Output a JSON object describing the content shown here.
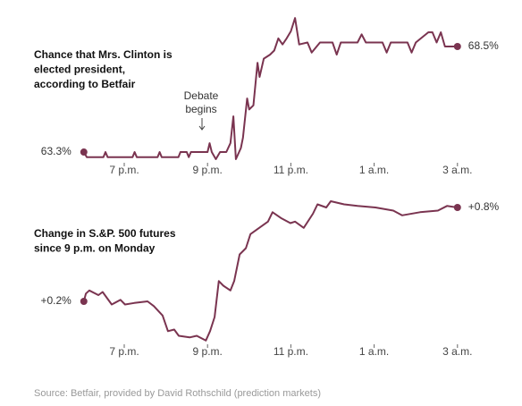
{
  "chart_data": [
    {
      "type": "line",
      "title": [
        "Chance that Mrs. Clinton is",
        "elected president,",
        "according to Betfair"
      ],
      "annotation": [
        "Debate",
        "begins"
      ],
      "color": "#7a3450",
      "xlim": [
        17.5,
        28
      ],
      "ylim": [
        62.5,
        70.5
      ],
      "xticks": [
        {
          "value": 19,
          "label": "7 p.m."
        },
        {
          "value": 21,
          "label": "9 p.m."
        },
        {
          "value": 23,
          "label": "11 p.m."
        },
        {
          "value": 25,
          "label": "1 a.m."
        },
        {
          "value": 27,
          "label": "3 a.m."
        }
      ],
      "x": [
        18.03,
        18.1,
        18.5,
        18.55,
        18.6,
        19.2,
        19.25,
        19.3,
        19.8,
        19.85,
        19.9,
        20.3,
        20.35,
        20.5,
        20.55,
        20.6,
        21.0,
        21.05,
        21.1,
        21.2,
        21.3,
        21.45,
        21.55,
        21.62,
        21.68,
        21.8,
        21.85,
        21.95,
        22.0,
        22.1,
        22.2,
        22.25,
        22.35,
        22.5,
        22.6,
        22.7,
        22.8,
        22.9,
        23.0,
        23.1,
        23.2,
        23.4,
        23.5,
        23.7,
        24.0,
        24.1,
        24.2,
        24.6,
        24.7,
        24.8,
        25.2,
        25.3,
        25.4,
        25.8,
        25.9,
        26.0,
        26.3,
        26.4,
        26.5,
        26.6,
        26.7,
        27.0
      ],
      "values": [
        63.3,
        63.05,
        63.05,
        63.3,
        63.05,
        63.05,
        63.3,
        63.05,
        63.05,
        63.3,
        63.05,
        63.05,
        63.3,
        63.3,
        63.05,
        63.3,
        63.3,
        63.74,
        63.3,
        62.95,
        63.3,
        63.3,
        63.74,
        65.06,
        62.95,
        63.5,
        64.0,
        65.94,
        65.4,
        65.6,
        67.7,
        67.0,
        67.9,
        68.1,
        68.3,
        68.9,
        68.6,
        68.9,
        69.25,
        69.9,
        68.6,
        68.7,
        68.2,
        68.7,
        68.7,
        68.1,
        68.7,
        68.7,
        69.1,
        68.7,
        68.7,
        68.2,
        68.7,
        68.7,
        68.2,
        68.7,
        69.2,
        69.2,
        68.7,
        69.2,
        68.5,
        68.5
      ],
      "value_labels": [
        "63.3%",
        null,
        null,
        null,
        null,
        null,
        null,
        null,
        null,
        null,
        null,
        null,
        null,
        null,
        null,
        null,
        null,
        null,
        null,
        null,
        null,
        null,
        null,
        null,
        null,
        null,
        null,
        null,
        null,
        null,
        null,
        null,
        null,
        null,
        null,
        null,
        null,
        null,
        null,
        null,
        null,
        null,
        null,
        null,
        null,
        null,
        null,
        null,
        null,
        null,
        null,
        null,
        null,
        null,
        null,
        null,
        null,
        null,
        null,
        null,
        null,
        "68.5%"
      ]
    },
    {
      "type": "line",
      "title": [
        "Change in S.&P. 500 futures",
        "since 9 p.m. on Monday"
      ],
      "color": "#7a3450",
      "xlim": [
        17.5,
        28
      ],
      "ylim": [
        -0.1,
        0.9
      ],
      "xticks": [
        {
          "value": 19,
          "label": "7 p.m."
        },
        {
          "value": 21,
          "label": "9 p.m."
        },
        {
          "value": 23,
          "label": "11 p.m."
        },
        {
          "value": 25,
          "label": "1 a.m."
        },
        {
          "value": 27,
          "label": "3 a.m."
        }
      ],
      "x": [
        18.03,
        18.08,
        18.16,
        18.38,
        18.48,
        18.7,
        18.91,
        19.02,
        19.24,
        19.56,
        19.71,
        19.92,
        20.05,
        20.2,
        20.31,
        20.57,
        20.74,
        20.96,
        21.06,
        21.17,
        21.27,
        21.38,
        21.55,
        21.64,
        21.77,
        21.92,
        22.03,
        22.24,
        22.45,
        22.56,
        22.78,
        22.99,
        23.1,
        23.31,
        23.53,
        23.64,
        23.85,
        23.96,
        24.28,
        24.6,
        25.03,
        25.46,
        25.67,
        26.1,
        26.53,
        26.75,
        27
      ],
      "values": [
        0.2,
        0.25,
        0.27,
        0.24,
        0.26,
        0.18,
        0.21,
        0.18,
        0.19,
        0.2,
        0.17,
        0.11,
        0.01,
        0.02,
        -0.02,
        -0.03,
        -0.02,
        -0.05,
        0.01,
        0.1,
        0.33,
        0.3,
        0.27,
        0.33,
        0.5,
        0.54,
        0.63,
        0.67,
        0.71,
        0.77,
        0.73,
        0.7,
        0.71,
        0.67,
        0.76,
        0.82,
        0.8,
        0.84,
        0.82,
        0.81,
        0.8,
        0.78,
        0.75,
        0.77,
        0.78,
        0.81,
        0.8
      ],
      "value_labels": [
        "+0.2%",
        null,
        null,
        null,
        null,
        null,
        null,
        null,
        null,
        null,
        null,
        null,
        null,
        null,
        null,
        null,
        null,
        null,
        null,
        null,
        null,
        null,
        null,
        null,
        null,
        null,
        null,
        null,
        null,
        null,
        null,
        null,
        null,
        null,
        null,
        null,
        null,
        null,
        null,
        null,
        null,
        null,
        null,
        null,
        null,
        null,
        "+0.8%"
      ]
    }
  ],
  "source": "Source: Betfair, provided by David Rothschild (prediction markets)"
}
